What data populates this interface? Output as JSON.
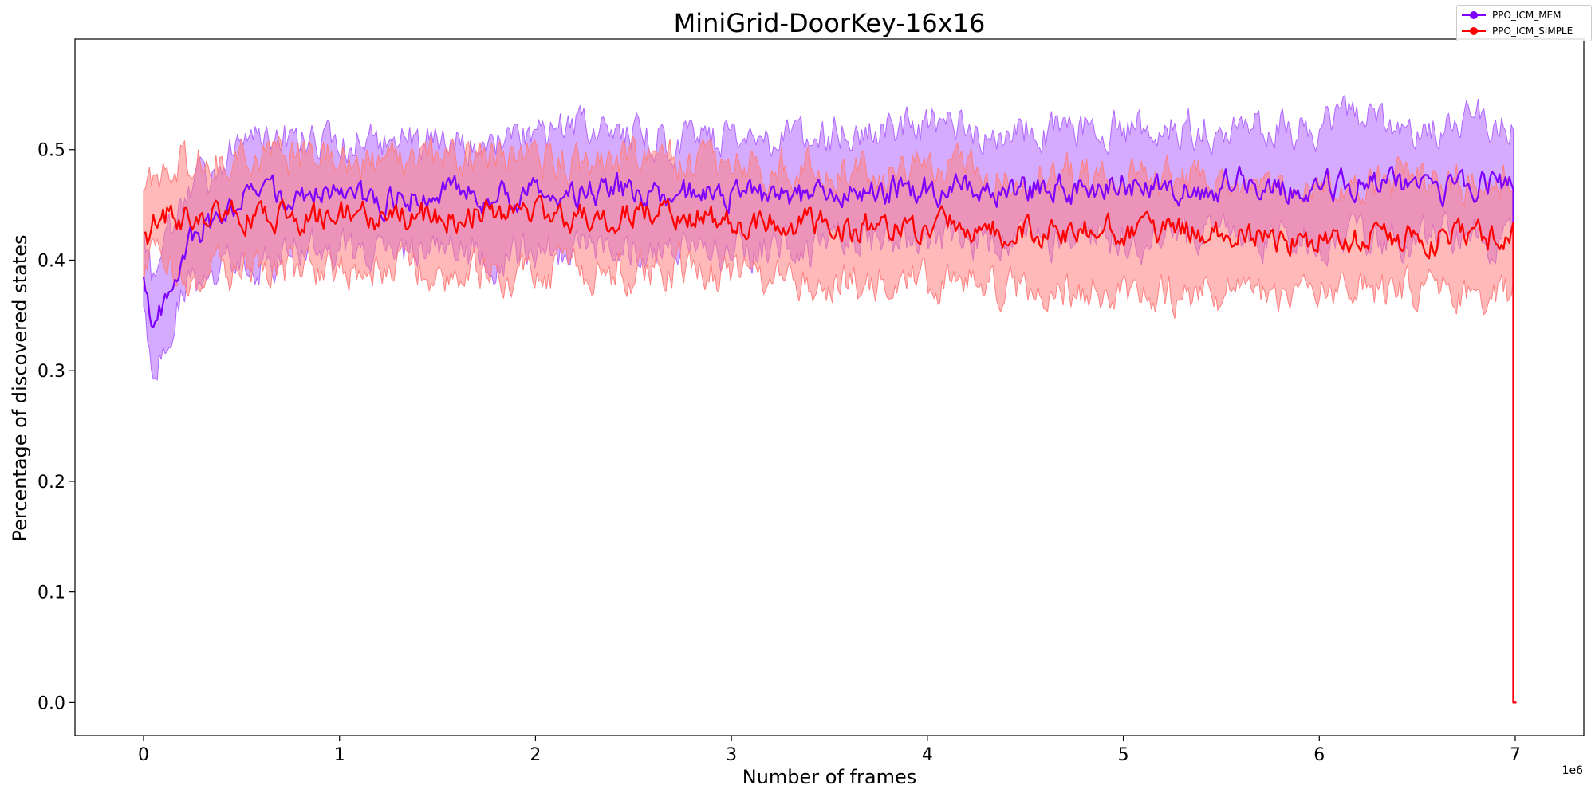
{
  "chart_data": {
    "type": "line",
    "title": "MiniGrid-DoorKey-16x16",
    "xlabel": "Number of frames",
    "ylabel": "Percentage of discovered states",
    "x_scale_label": "1e6",
    "xlim": [
      -0.35,
      7.35
    ],
    "ylim": [
      -0.03,
      0.6
    ],
    "xticks": [
      0,
      1,
      2,
      3,
      4,
      5,
      6,
      7
    ],
    "xtick_labels": [
      "0",
      "1",
      "2",
      "3",
      "4",
      "5",
      "6",
      "7"
    ],
    "yticks": [
      0.0,
      0.1,
      0.2,
      0.3,
      0.4,
      0.5
    ],
    "ytick_labels": [
      "0.0",
      "0.1",
      "0.2",
      "0.3",
      "0.4",
      "0.5"
    ],
    "grid": false,
    "legend_position": "top-right",
    "final_drop": {
      "x": 6.99,
      "y": 0.0
    },
    "series": [
      {
        "name": "PPO_ICM_MEM",
        "color": "#7f00ff",
        "band_color": "#b066ff",
        "x": [
          0.0,
          0.03,
          0.05,
          0.1,
          0.15,
          0.2,
          0.3,
          0.4,
          0.5,
          0.6,
          0.8,
          1.0,
          1.2,
          1.4,
          1.6,
          1.8,
          2.0,
          2.2,
          2.4,
          2.6,
          2.8,
          3.0,
          3.2,
          3.4,
          3.6,
          3.8,
          4.0,
          4.2,
          4.4,
          4.6,
          4.8,
          5.0,
          5.2,
          5.4,
          5.6,
          5.8,
          6.0,
          6.2,
          6.4,
          6.6,
          6.8,
          6.99
        ],
        "mean": [
          0.39,
          0.35,
          0.34,
          0.36,
          0.39,
          0.41,
          0.43,
          0.44,
          0.455,
          0.46,
          0.46,
          0.46,
          0.455,
          0.46,
          0.46,
          0.455,
          0.46,
          0.46,
          0.465,
          0.46,
          0.46,
          0.46,
          0.46,
          0.46,
          0.465,
          0.465,
          0.465,
          0.465,
          0.465,
          0.465,
          0.465,
          0.465,
          0.465,
          0.465,
          0.47,
          0.465,
          0.465,
          0.47,
          0.47,
          0.465,
          0.47,
          0.47
        ],
        "lower": [
          0.36,
          0.32,
          0.31,
          0.32,
          0.35,
          0.37,
          0.38,
          0.39,
          0.4,
          0.4,
          0.41,
          0.41,
          0.4,
          0.41,
          0.41,
          0.4,
          0.41,
          0.41,
          0.41,
          0.41,
          0.41,
          0.41,
          0.41,
          0.41,
          0.42,
          0.42,
          0.42,
          0.42,
          0.42,
          0.42,
          0.42,
          0.42,
          0.42,
          0.42,
          0.42,
          0.42,
          0.42,
          0.42,
          0.42,
          0.42,
          0.42,
          0.42
        ],
        "upper": [
          0.42,
          0.39,
          0.38,
          0.41,
          0.43,
          0.45,
          0.47,
          0.49,
          0.51,
          0.51,
          0.51,
          0.51,
          0.51,
          0.51,
          0.51,
          0.51,
          0.51,
          0.52,
          0.52,
          0.51,
          0.51,
          0.51,
          0.51,
          0.51,
          0.52,
          0.52,
          0.52,
          0.52,
          0.52,
          0.52,
          0.52,
          0.52,
          0.52,
          0.52,
          0.52,
          0.52,
          0.52,
          0.53,
          0.52,
          0.52,
          0.53,
          0.52
        ]
      },
      {
        "name": "PPO_ICM_SIMPLE",
        "color": "#ff0000",
        "band_color": "#ff7f7f",
        "x": [
          0.0,
          0.03,
          0.05,
          0.1,
          0.15,
          0.2,
          0.3,
          0.4,
          0.5,
          0.6,
          0.8,
          1.0,
          1.2,
          1.4,
          1.6,
          1.8,
          2.0,
          2.2,
          2.4,
          2.6,
          2.8,
          3.0,
          3.2,
          3.4,
          3.6,
          3.8,
          4.0,
          4.2,
          4.4,
          4.6,
          4.8,
          5.0,
          5.2,
          5.4,
          5.6,
          5.8,
          6.0,
          6.2,
          6.4,
          6.6,
          6.8,
          6.99
        ],
        "mean": [
          0.42,
          0.425,
          0.43,
          0.44,
          0.44,
          0.44,
          0.44,
          0.44,
          0.44,
          0.44,
          0.44,
          0.44,
          0.44,
          0.44,
          0.44,
          0.445,
          0.445,
          0.44,
          0.44,
          0.44,
          0.44,
          0.435,
          0.435,
          0.435,
          0.43,
          0.43,
          0.43,
          0.43,
          0.425,
          0.425,
          0.425,
          0.425,
          0.425,
          0.425,
          0.42,
          0.42,
          0.42,
          0.42,
          0.42,
          0.42,
          0.42,
          0.42
        ],
        "lower": [
          0.39,
          0.4,
          0.4,
          0.4,
          0.39,
          0.39,
          0.39,
          0.39,
          0.39,
          0.39,
          0.39,
          0.39,
          0.39,
          0.39,
          0.39,
          0.39,
          0.39,
          0.39,
          0.39,
          0.39,
          0.39,
          0.385,
          0.385,
          0.385,
          0.38,
          0.38,
          0.38,
          0.38,
          0.375,
          0.375,
          0.375,
          0.375,
          0.37,
          0.37,
          0.37,
          0.37,
          0.37,
          0.37,
          0.37,
          0.37,
          0.37,
          0.37
        ],
        "upper": [
          0.45,
          0.46,
          0.47,
          0.48,
          0.49,
          0.49,
          0.49,
          0.49,
          0.49,
          0.49,
          0.49,
          0.49,
          0.49,
          0.49,
          0.49,
          0.495,
          0.495,
          0.49,
          0.49,
          0.49,
          0.49,
          0.485,
          0.485,
          0.485,
          0.48,
          0.48,
          0.48,
          0.48,
          0.475,
          0.475,
          0.475,
          0.475,
          0.475,
          0.475,
          0.47,
          0.47,
          0.47,
          0.47,
          0.47,
          0.47,
          0.47,
          0.47
        ]
      }
    ]
  }
}
